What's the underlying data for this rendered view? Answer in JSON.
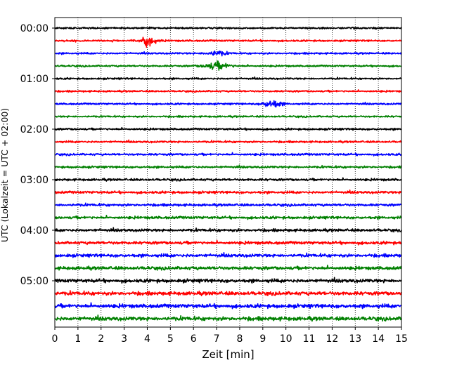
{
  "chart_data": {
    "type": "line",
    "title": "",
    "xlabel": "Zeit  [min]",
    "ylabel": "UTC (Lokalzeit = UTC + 02:00)",
    "xlim": [
      0,
      15
    ],
    "x_ticks": [
      0,
      1,
      2,
      3,
      4,
      5,
      6,
      7,
      8,
      9,
      10,
      11,
      12,
      13,
      14,
      15
    ],
    "y_tick_labels": [
      "00:00",
      "01:00",
      "02:00",
      "03:00",
      "04:00",
      "05:00"
    ],
    "trace_interval_minutes": 15,
    "trace_colors": [
      "#000000",
      "#ff0000",
      "#0000ff",
      "#008000"
    ],
    "grid": "vertical dotted lines at each minute",
    "traces": [
      {
        "start": "00:00",
        "color": "#000000",
        "amplitude": 0.5,
        "bursts": []
      },
      {
        "start": "00:15",
        "color": "#ff0000",
        "amplitude": 0.5,
        "bursts": [
          {
            "center": 4.0,
            "width": 0.7,
            "peak": 2.6
          }
        ]
      },
      {
        "start": "00:30",
        "color": "#0000ff",
        "amplitude": 0.5,
        "bursts": [
          {
            "center": 7.0,
            "width": 0.8,
            "peak": 1.4
          }
        ]
      },
      {
        "start": "00:45",
        "color": "#008000",
        "amplitude": 0.5,
        "bursts": [
          {
            "center": 7.0,
            "width": 1.1,
            "peak": 2.0
          }
        ]
      },
      {
        "start": "01:00",
        "color": "#000000",
        "amplitude": 0.5,
        "bursts": []
      },
      {
        "start": "01:15",
        "color": "#ff0000",
        "amplitude": 0.5,
        "bursts": []
      },
      {
        "start": "01:30",
        "color": "#0000ff",
        "amplitude": 0.5,
        "bursts": [
          {
            "center": 9.4,
            "width": 0.8,
            "peak": 2.2
          }
        ]
      },
      {
        "start": "01:45",
        "color": "#008000",
        "amplitude": 0.5,
        "bursts": []
      },
      {
        "start": "02:00",
        "color": "#000000",
        "amplitude": 0.55,
        "bursts": []
      },
      {
        "start": "02:15",
        "color": "#ff0000",
        "amplitude": 0.55,
        "bursts": []
      },
      {
        "start": "02:30",
        "color": "#0000ff",
        "amplitude": 0.6,
        "bursts": []
      },
      {
        "start": "02:45",
        "color": "#008000",
        "amplitude": 0.6,
        "bursts": []
      },
      {
        "start": "03:00",
        "color": "#000000",
        "amplitude": 0.65,
        "bursts": []
      },
      {
        "start": "03:15",
        "color": "#ff0000",
        "amplitude": 0.7,
        "bursts": []
      },
      {
        "start": "03:30",
        "color": "#0000ff",
        "amplitude": 0.7,
        "bursts": []
      },
      {
        "start": "03:45",
        "color": "#008000",
        "amplitude": 0.75,
        "bursts": []
      },
      {
        "start": "04:00",
        "color": "#000000",
        "amplitude": 0.8,
        "bursts": []
      },
      {
        "start": "04:15",
        "color": "#ff0000",
        "amplitude": 0.85,
        "bursts": []
      },
      {
        "start": "04:30",
        "color": "#0000ff",
        "amplitude": 0.9,
        "bursts": []
      },
      {
        "start": "04:45",
        "color": "#008000",
        "amplitude": 0.95,
        "bursts": []
      },
      {
        "start": "05:00",
        "color": "#000000",
        "amplitude": 1.0,
        "bursts": []
      },
      {
        "start": "05:15",
        "color": "#ff0000",
        "amplitude": 1.05,
        "bursts": []
      },
      {
        "start": "05:30",
        "color": "#0000ff",
        "amplitude": 1.1,
        "bursts": []
      },
      {
        "start": "05:45",
        "color": "#008000",
        "amplitude": 1.1,
        "bursts": []
      }
    ]
  }
}
